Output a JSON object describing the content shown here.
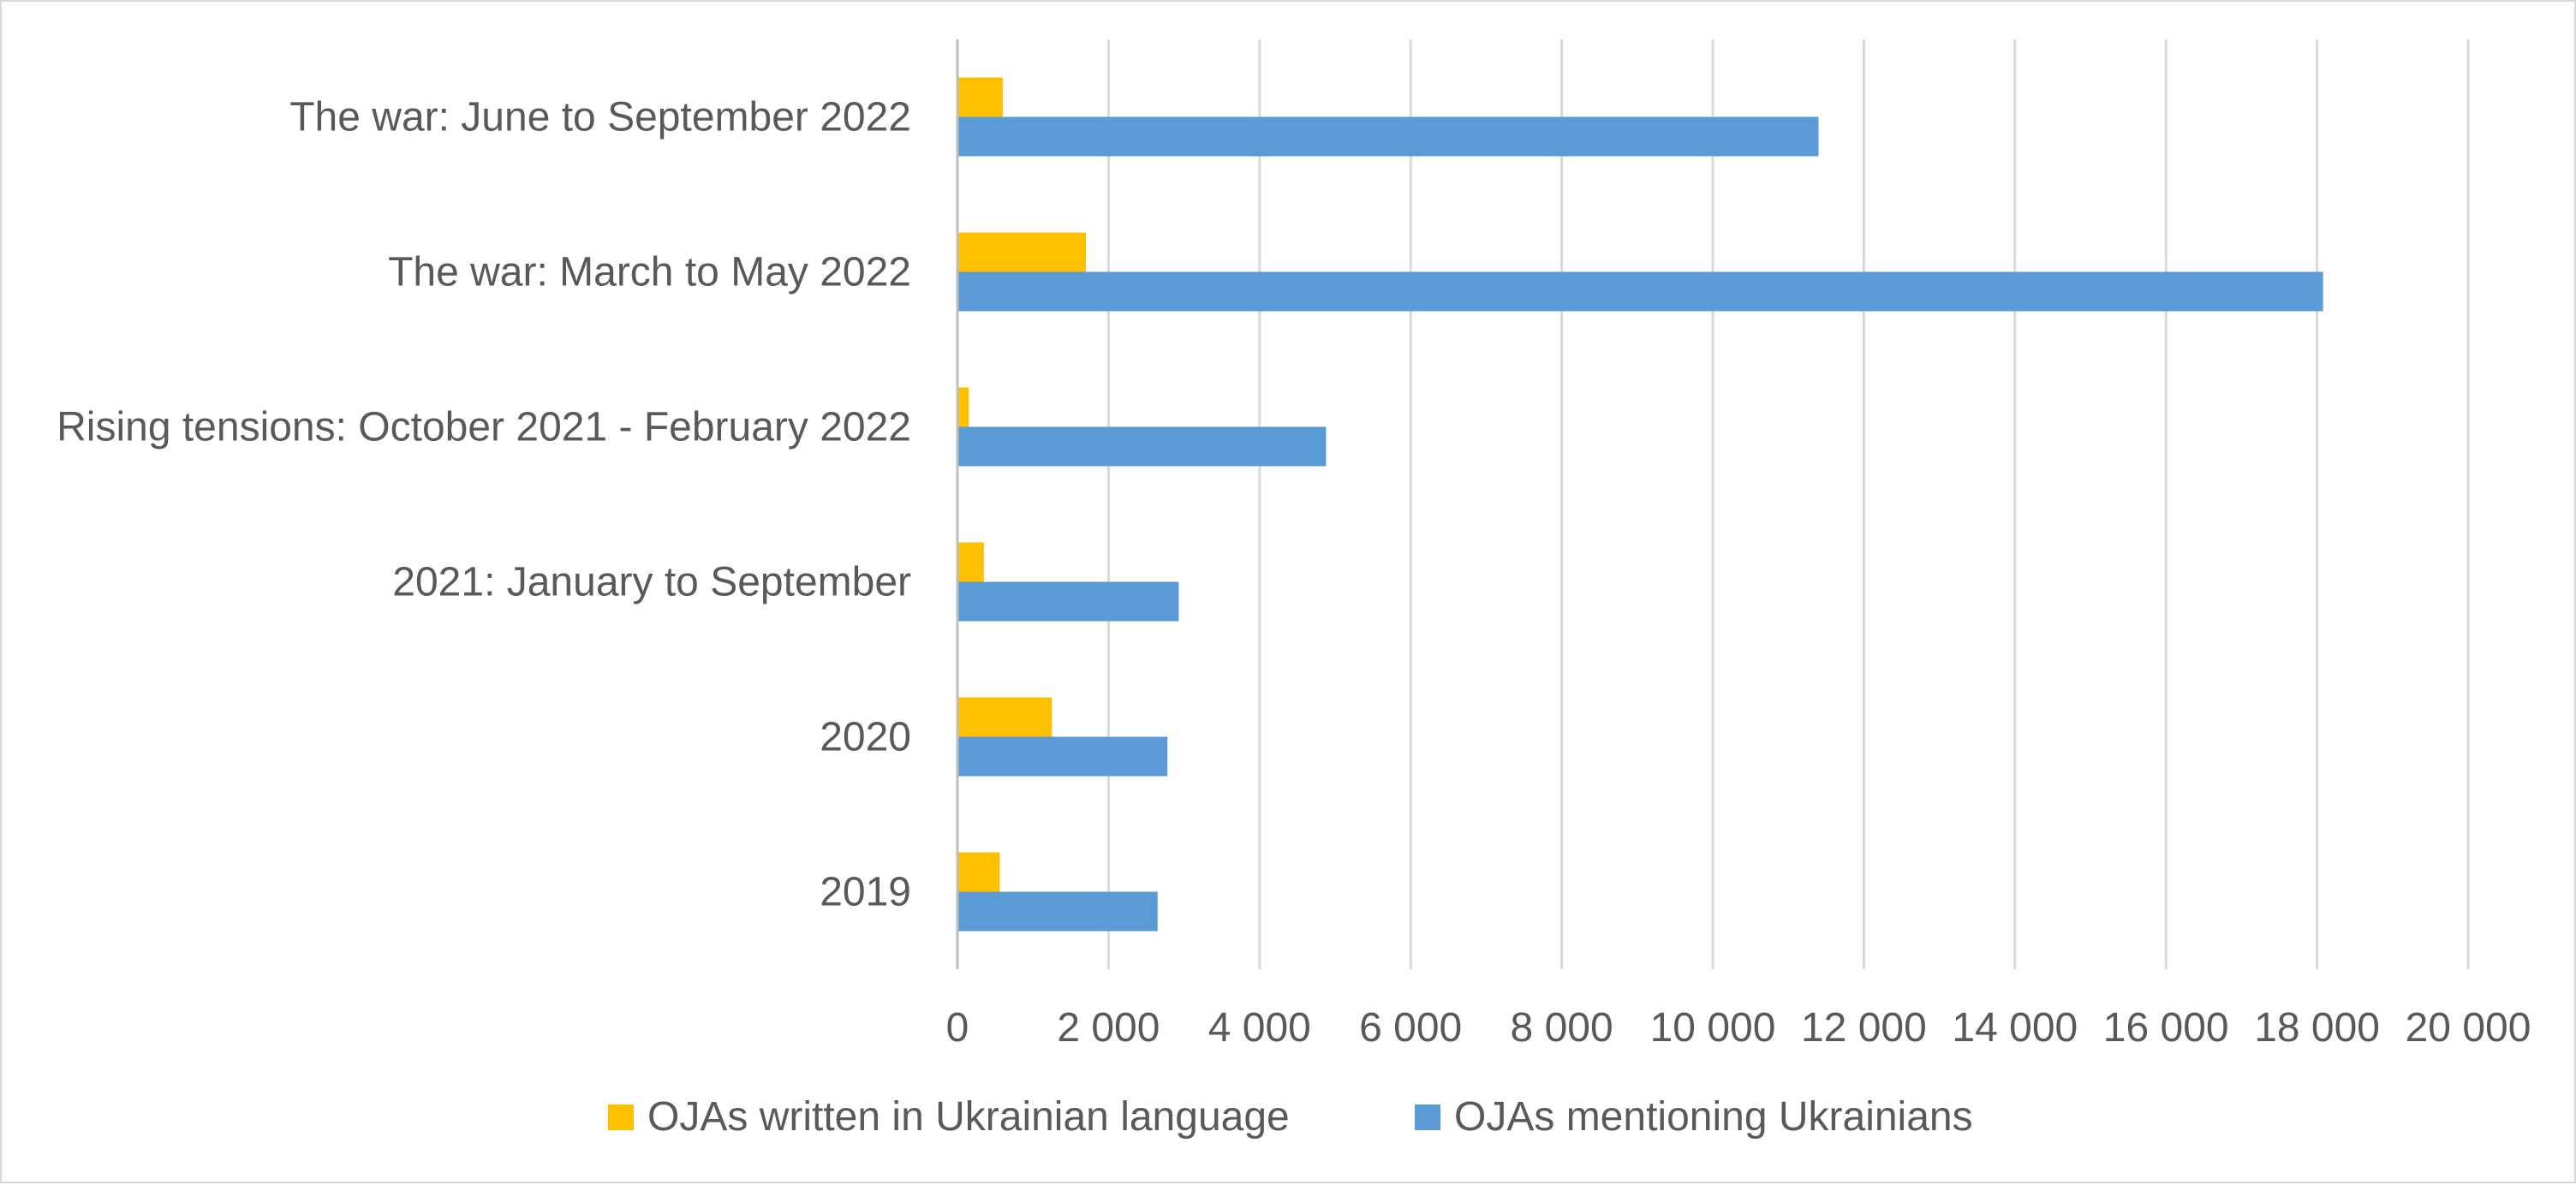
{
  "chart_data": {
    "type": "bar",
    "orientation": "horizontal",
    "categories": [
      "2019",
      "2020",
      "2021: January to September",
      "Rising tensions: October 2021 - February 2022",
      "The war: March to May 2022",
      "The war: June to September 2022"
    ],
    "series": [
      {
        "name": "OJAs written in Ukrainian language",
        "color": "#ffc000",
        "values": [
          560,
          1250,
          350,
          150,
          1700,
          600
        ]
      },
      {
        "name": "OJAs mentioning Ukrainians",
        "color": "#5b9bd5",
        "values": [
          2650,
          2780,
          2930,
          4880,
          18080,
          11400
        ]
      }
    ],
    "xlim": [
      0,
      20000
    ],
    "xticks": [
      0,
      2000,
      4000,
      6000,
      8000,
      10000,
      12000,
      14000,
      16000,
      18000,
      20000
    ],
    "xtick_labels": [
      "0",
      "2 000",
      "4 000",
      "6 000",
      "8 000",
      "10 000",
      "12 000",
      "14 000",
      "16 000",
      "18 000",
      "20 000"
    ],
    "grid": "vertical",
    "legend_position": "bottom",
    "title": "",
    "xlabel": "",
    "ylabel": ""
  }
}
